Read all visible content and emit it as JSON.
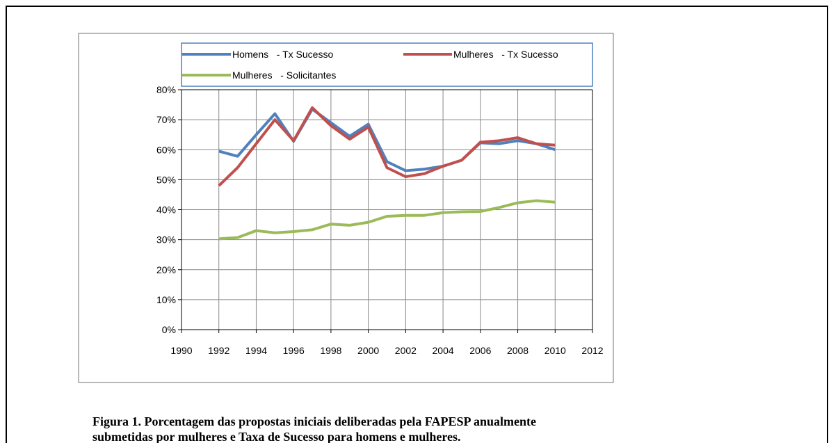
{
  "chart_data": {
    "type": "line",
    "x": [
      1992,
      1993,
      1994,
      1995,
      1996,
      1997,
      1998,
      1999,
      2000,
      2001,
      2002,
      2003,
      2004,
      2005,
      2006,
      2007,
      2008,
      2009,
      2010
    ],
    "series": [
      {
        "name": "Homens   - Tx Sucesso",
        "color": "#4f81bd",
        "values": [
          59.5,
          57.8,
          65,
          72,
          62.8,
          73.5,
          69,
          64.5,
          68.5,
          56,
          53,
          53.5,
          54.5,
          56.5,
          62.3,
          62,
          63,
          62,
          60
        ]
      },
      {
        "name": "Mulheres   - Tx Sucesso",
        "color": "#c0504d",
        "values": [
          48,
          54,
          62,
          70,
          63,
          74,
          68,
          63.5,
          67.5,
          54,
          51,
          52,
          54.5,
          56.5,
          62.5,
          63,
          64,
          62,
          61.5
        ]
      },
      {
        "name": "Mulheres   - Solicitantes",
        "color": "#9bbb59",
        "values": [
          30.3,
          30.7,
          33,
          32.3,
          32.7,
          33.3,
          35.2,
          34.8,
          35.8,
          37.8,
          38.1,
          38.1,
          39,
          39.3,
          39.4,
          40.7,
          42.3,
          43,
          42.5
        ]
      }
    ],
    "xlim": [
      1990,
      2012
    ],
    "xticks": [
      1990,
      1992,
      1994,
      1996,
      1998,
      2000,
      2002,
      2004,
      2006,
      2008,
      2010,
      2012
    ],
    "ylim": [
      0,
      80
    ],
    "yticks": [
      {
        "value": 0,
        "label": "0%"
      },
      {
        "value": 10,
        "label": "10%"
      },
      {
        "value": 20,
        "label": "20%"
      },
      {
        "value": 30,
        "label": "30%"
      },
      {
        "value": 40,
        "label": "40%"
      },
      {
        "value": 50,
        "label": "50%"
      },
      {
        "value": 60,
        "label": "60%"
      },
      {
        "value": 70,
        "label": "70%"
      },
      {
        "value": 80,
        "label": "80%"
      }
    ],
    "grid": true
  },
  "caption": [
    "Figura 1. Porcentagem das propostas iniciais deliberadas pela FAPESP anualmente",
    "submetidas por mulheres e Taxa de Sucesso para homens e mulheres."
  ]
}
